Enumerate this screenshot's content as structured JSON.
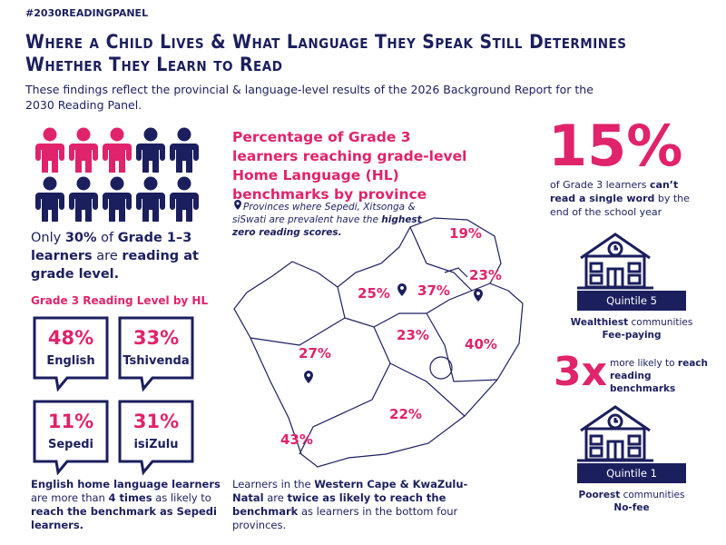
{
  "hashtag": "#2030READINGPANEL",
  "title": "Where a Child Lives & What Language They Speak Still Determines Whether They Learn to Read",
  "subtitle": "These findings reflect the provincial & language-level results of the 2026 Background Report for the 2030 Reading Panel.",
  "left": {
    "summary": [
      {
        "t": "Only "
      },
      {
        "t": "30%",
        "b": true
      },
      {
        "t": " of "
      },
      {
        "t": "Grade 1–3 learners",
        "b": true
      },
      {
        "t": " are "
      },
      {
        "t": "reading at grade level.",
        "b": true
      }
    ],
    "hl_title": "Grade 3 Reading Level by HL",
    "bubbles": [
      {
        "value": "48%",
        "language": "English"
      },
      {
        "value": "33%",
        "language": "Tshivenda"
      },
      {
        "value": "11%",
        "language": "Sepedi"
      },
      {
        "value": "31%",
        "language": "isiZulu"
      }
    ],
    "note": [
      {
        "t": "English home language learners",
        "b": true
      },
      {
        "t": " are more than "
      },
      {
        "t": "4 times",
        "b": true
      },
      {
        "t": " as likely to "
      },
      {
        "t": "reach the benchmark as Sepedi learners.",
        "b": true
      }
    ]
  },
  "center": {
    "chart_title": "Percentage of Grade 3 learners reaching grade-level Home Language (HL) benchmarks by province",
    "map_note": [
      {
        "t": "Provinces where Sepedi, Xitsonga & siSwati are prevalent have the "
      },
      {
        "t": "highest zero reading scores.",
        "b": true
      }
    ],
    "map_labels": [
      "19%",
      "23%",
      "25%",
      "37%",
      "23%",
      "40%",
      "27%",
      "22%",
      "43%"
    ],
    "note": [
      {
        "t": "Learners in the "
      },
      {
        "t": "Western Cape & KwaZulu-Natal",
        "b": true
      },
      {
        "t": " are "
      },
      {
        "t": "twice as likely to reach the benchmark",
        "b": true
      },
      {
        "t": " as learners in the bottom four provinces."
      }
    ]
  },
  "right": {
    "stat": "15%",
    "stat_text": [
      {
        "t": "of Grade 3 learners "
      },
      {
        "t": "can’t read a single word",
        "b": true
      },
      {
        "t": " by the end of the school year"
      }
    ],
    "quintile_top": {
      "label": "Quintile 5",
      "line1": [
        {
          "t": "Wealthiest",
          "b": true
        },
        {
          "t": " communities"
        }
      ],
      "line2": "Fee-paying"
    },
    "multiplier": "3x",
    "multiplier_text": [
      {
        "t": "more likely to "
      },
      {
        "t": "reach reading benchmarks",
        "b": true
      }
    ],
    "quintile_bottom": {
      "label": "Quintile 1",
      "line1": [
        {
          "t": "Poorest",
          "b": true
        },
        {
          "t": " communities"
        }
      ],
      "line2": "No-fee"
    }
  }
}
